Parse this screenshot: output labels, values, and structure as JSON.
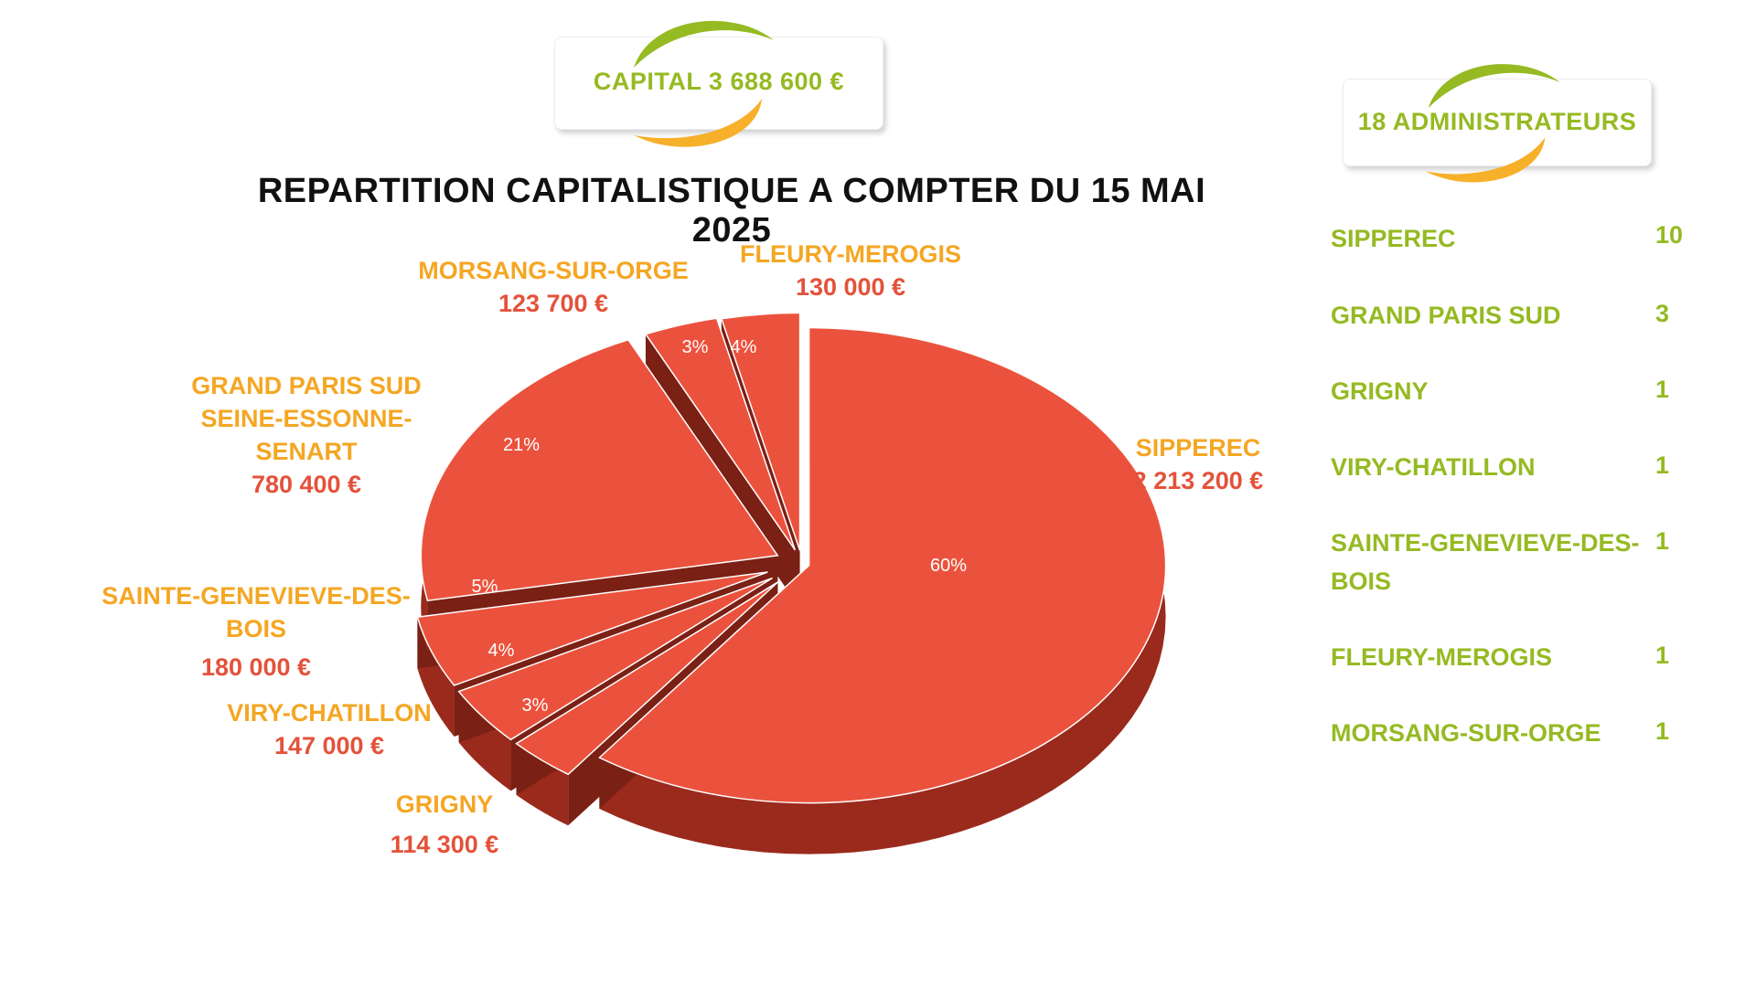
{
  "capital_badge": {
    "text": "CAPITAL 3 688 600 €"
  },
  "admins_badge": {
    "text": "18 ADMINISTRATEURS"
  },
  "colors": {
    "green": "#95ba22",
    "orange": "#f5a623",
    "red": "#e3523a",
    "slice": "#eb523d",
    "slice_side": "#9a2a1c"
  },
  "chart_data": {
    "type": "pie",
    "title": "REPARTITION CAPITALISTIQUE A COMPTER DU 15 MAI 2025",
    "slices": [
      {
        "name": "SIPPEREC",
        "name_lines": [
          "SIPPEREC"
        ],
        "value_label": "2 213 200 €",
        "value": 2213200,
        "percent": 60
      },
      {
        "name": "GRIGNY",
        "name_lines": [
          "GRIGNY"
        ],
        "value_label": "114 300 €",
        "value": 114300,
        "percent": 3
      },
      {
        "name": "VIRY-CHATILLON",
        "name_lines": [
          "VIRY-CHATILLON"
        ],
        "value_label": "147 000 €",
        "value": 147000,
        "percent": 4
      },
      {
        "name": "SAINTE-GENEVIEVE-DES-BOIS",
        "name_lines": [
          "SAINTE-GENEVIEVE-DES-",
          "BOIS"
        ],
        "value_label": "180 000 €",
        "value": 180000,
        "percent": 5
      },
      {
        "name": "GRAND PARIS SUD SEINE-ESSONNE-SENART",
        "name_lines": [
          "GRAND PARIS SUD",
          "SEINE-ESSONNE-",
          "SENART"
        ],
        "value_label": "780 400 €",
        "value": 780400,
        "percent": 21
      },
      {
        "name": "MORSANG-SUR-ORGE",
        "name_lines": [
          "MORSANG-SUR-ORGE"
        ],
        "value_label": "123 700 €",
        "value": 123700,
        "percent": 3
      },
      {
        "name": "FLEURY-MEROGIS",
        "name_lines": [
          "FLEURY-MEROGIS"
        ],
        "value_label": "130 000 €",
        "value": 130000,
        "percent": 4
      }
    ]
  },
  "administrateurs": [
    {
      "name_lines": [
        "SIPPEREC"
      ],
      "count": "10"
    },
    {
      "name_lines": [
        "GRAND PARIS SUD"
      ],
      "count": "3"
    },
    {
      "name_lines": [
        "GRIGNY"
      ],
      "count": "1"
    },
    {
      "name_lines": [
        "VIRY-CHATILLON"
      ],
      "count": "1"
    },
    {
      "name_lines": [
        "SAINTE-GENEVIEVE-DES-",
        "BOIS"
      ],
      "count": "1"
    },
    {
      "name_lines": [
        "FLEURY-MEROGIS"
      ],
      "count": "1"
    },
    {
      "name_lines": [
        "MORSANG-SUR-ORGE"
      ],
      "count": "1"
    }
  ]
}
